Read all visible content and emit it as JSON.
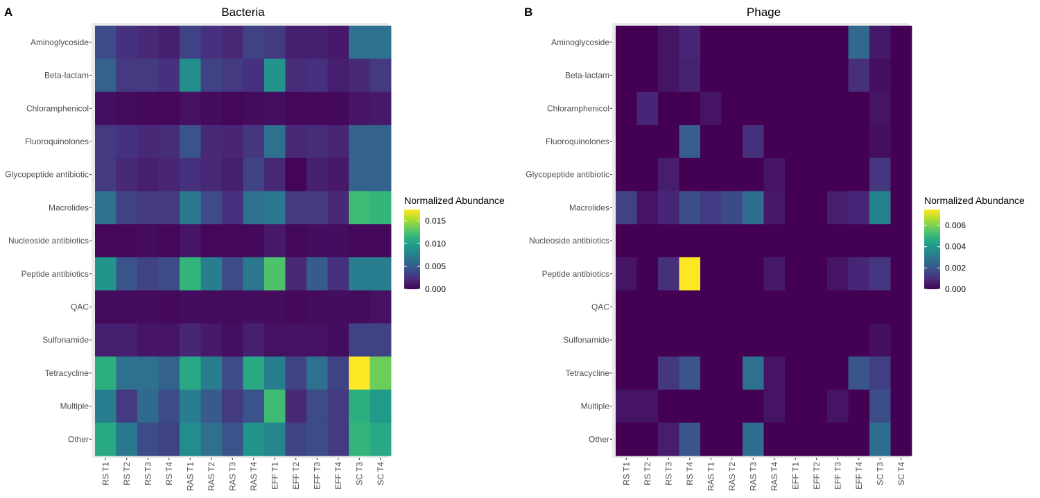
{
  "chart_data": [
    {
      "type": "heatmap",
      "panel": "A",
      "title": "Bacteria",
      "x_categories": [
        "RS T1",
        "RS T2",
        "RS T3",
        "RS T4",
        "RAS T1",
        "RAS T2",
        "RAS T3",
        "RAS T4",
        "EFF T1",
        "EFF T2",
        "EFF T3",
        "EFF T4",
        "SC T3",
        "SC T4"
      ],
      "y_categories": [
        "Aminoglycoside",
        "Beta-lactam",
        "Chloramphenicol",
        "Fluoroquinolones",
        "Glycopeptide antibiotic",
        "Macrolides",
        "Nucleoside antibiotics",
        "Peptide antibiotics",
        "QAC",
        "Sulfonamide",
        "Tetracycline",
        "Multiple",
        "Other"
      ],
      "values": [
        [
          0.004,
          0.0025,
          0.002,
          0.0015,
          0.0035,
          0.0025,
          0.002,
          0.0035,
          0.003,
          0.0015,
          0.0015,
          0.0012,
          0.0065,
          0.0065
        ],
        [
          0.0055,
          0.003,
          0.003,
          0.0025,
          0.0085,
          0.0035,
          0.003,
          0.0025,
          0.009,
          0.0022,
          0.0025,
          0.0015,
          0.002,
          0.003
        ],
        [
          0.0007,
          0.0005,
          0.0004,
          0.0003,
          0.0008,
          0.0005,
          0.0003,
          0.0005,
          0.0007,
          0.0003,
          0.0004,
          0.0004,
          0.001,
          0.0012
        ],
        [
          0.003,
          0.0025,
          0.002,
          0.0022,
          0.0045,
          0.002,
          0.0018,
          0.0028,
          0.0065,
          0.002,
          0.0022,
          0.0018,
          0.0055,
          0.0055
        ],
        [
          0.003,
          0.002,
          0.0015,
          0.0018,
          0.0025,
          0.002,
          0.0015,
          0.0035,
          0.002,
          0.0002,
          0.0015,
          0.0012,
          0.0055,
          0.0055
        ],
        [
          0.0065,
          0.0035,
          0.003,
          0.003,
          0.007,
          0.004,
          0.0025,
          0.0065,
          0.007,
          0.003,
          0.003,
          0.002,
          0.012,
          0.0115
        ],
        [
          0.0003,
          0.0003,
          0.0005,
          0.0003,
          0.001,
          0.0003,
          0.0003,
          0.0004,
          0.0012,
          0.0004,
          0.0006,
          0.0006,
          0.0003,
          0.0003
        ],
        [
          0.009,
          0.0045,
          0.0035,
          0.004,
          0.0115,
          0.0075,
          0.004,
          0.007,
          0.0125,
          0.002,
          0.005,
          0.0025,
          0.0075,
          0.0075
        ],
        [
          0.0005,
          0.0005,
          0.0005,
          0.0004,
          0.0006,
          0.0005,
          0.0005,
          0.0006,
          0.0005,
          0.0004,
          0.0005,
          0.0006,
          0.0005,
          0.0008
        ],
        [
          0.0015,
          0.0015,
          0.001,
          0.001,
          0.0018,
          0.0012,
          0.0007,
          0.0015,
          0.0008,
          0.0008,
          0.0008,
          0.0006,
          0.0035,
          0.0035
        ],
        [
          0.011,
          0.0065,
          0.0065,
          0.0055,
          0.0105,
          0.0075,
          0.004,
          0.0105,
          0.0075,
          0.0035,
          0.0065,
          0.0035,
          0.0175,
          0.0135
        ],
        [
          0.0075,
          0.003,
          0.006,
          0.004,
          0.0075,
          0.005,
          0.003,
          0.0045,
          0.012,
          0.002,
          0.004,
          0.003,
          0.011,
          0.0095
        ],
        [
          0.0105,
          0.007,
          0.004,
          0.0035,
          0.0085,
          0.0065,
          0.0045,
          0.009,
          0.008,
          0.0035,
          0.004,
          0.003,
          0.0115,
          0.0105
        ]
      ],
      "legend_title": "Normalized Abundance",
      "legend_ticks": [
        "0.015",
        "0.010",
        "0.005",
        "0.000"
      ],
      "legend_tick_values": [
        0.015,
        0.01,
        0.005,
        0.0
      ],
      "color_range": [
        0,
        0.0175
      ],
      "colormap": "viridis"
    },
    {
      "type": "heatmap",
      "panel": "B",
      "title": "Phage",
      "x_categories": [
        "RS T1",
        "RS T2",
        "RS T3",
        "RS T4",
        "RAS T1",
        "RAS T2",
        "RAS T3",
        "RAS T4",
        "EFF T1",
        "EFF T2",
        "EFF T3",
        "EFF T4",
        "SC T3",
        "SC T4"
      ],
      "y_categories": [
        "Aminoglycoside",
        "Beta-lactam",
        "Chloramphenicol",
        "Fluoroquinolones",
        "Glycopeptide antibiotic",
        "Macrolides",
        "Nucleoside antibiotics",
        "Peptide antibiotics",
        "QAC",
        "Sulfonamide",
        "Tetracycline",
        "Multiple",
        "Other"
      ],
      "values": [
        [
          0,
          0,
          0.0004,
          0.0008,
          0,
          0,
          0,
          0,
          0,
          0,
          0,
          0.0025,
          0.0005,
          0
        ],
        [
          0,
          0,
          0.0004,
          0.0007,
          0,
          0,
          0,
          0,
          0,
          0,
          0,
          0.001,
          0.0003,
          0
        ],
        [
          0,
          0.0008,
          0,
          0,
          0.0004,
          0,
          0,
          0,
          0,
          0,
          0,
          0,
          0.0004,
          0
        ],
        [
          0,
          0,
          0,
          0.0022,
          0,
          0,
          0.001,
          0,
          0,
          0,
          0,
          0,
          0.0003,
          0
        ],
        [
          0,
          0,
          0.0006,
          0,
          0,
          0,
          0,
          0.0004,
          0,
          0,
          0,
          0,
          0.0012,
          0
        ],
        [
          0.0015,
          0.0004,
          0.0008,
          0.0018,
          0.0013,
          0.0017,
          0.0027,
          0.0005,
          0,
          0,
          0.0006,
          0.0008,
          0.0033,
          0
        ],
        [
          0,
          0,
          0,
          0,
          0,
          0,
          0,
          0,
          0,
          0,
          0,
          0,
          0,
          0
        ],
        [
          0.0004,
          0,
          0.001,
          0.0075,
          0,
          0,
          0,
          0.0005,
          0,
          0,
          0.0004,
          0.0008,
          0.0012,
          0
        ],
        [
          0,
          0,
          0,
          0,
          0,
          0,
          0,
          0,
          0,
          0,
          0,
          0,
          0,
          0
        ],
        [
          0,
          0,
          0,
          0,
          0,
          0,
          0,
          0,
          0,
          0,
          0,
          0,
          0.0003,
          0
        ],
        [
          0,
          0,
          0.0012,
          0.002,
          0,
          0,
          0.0028,
          0.0004,
          0,
          0,
          0,
          0.002,
          0.0014,
          0
        ],
        [
          0.0004,
          0.0004,
          0,
          0,
          0,
          0,
          0,
          0.0004,
          0,
          0,
          0.0004,
          0,
          0.0018,
          0
        ],
        [
          0,
          0,
          0.0006,
          0.002,
          0,
          0,
          0.0027,
          0,
          0,
          0,
          0,
          0,
          0.0027,
          0
        ]
      ],
      "legend_title": "Normalized Abundance",
      "legend_ticks": [
        "0.006",
        "0.004",
        "0.002",
        "0.000"
      ],
      "legend_tick_values": [
        0.006,
        0.004,
        0.002,
        0.0
      ],
      "color_range": [
        0,
        0.0075
      ],
      "colormap": "viridis"
    }
  ]
}
